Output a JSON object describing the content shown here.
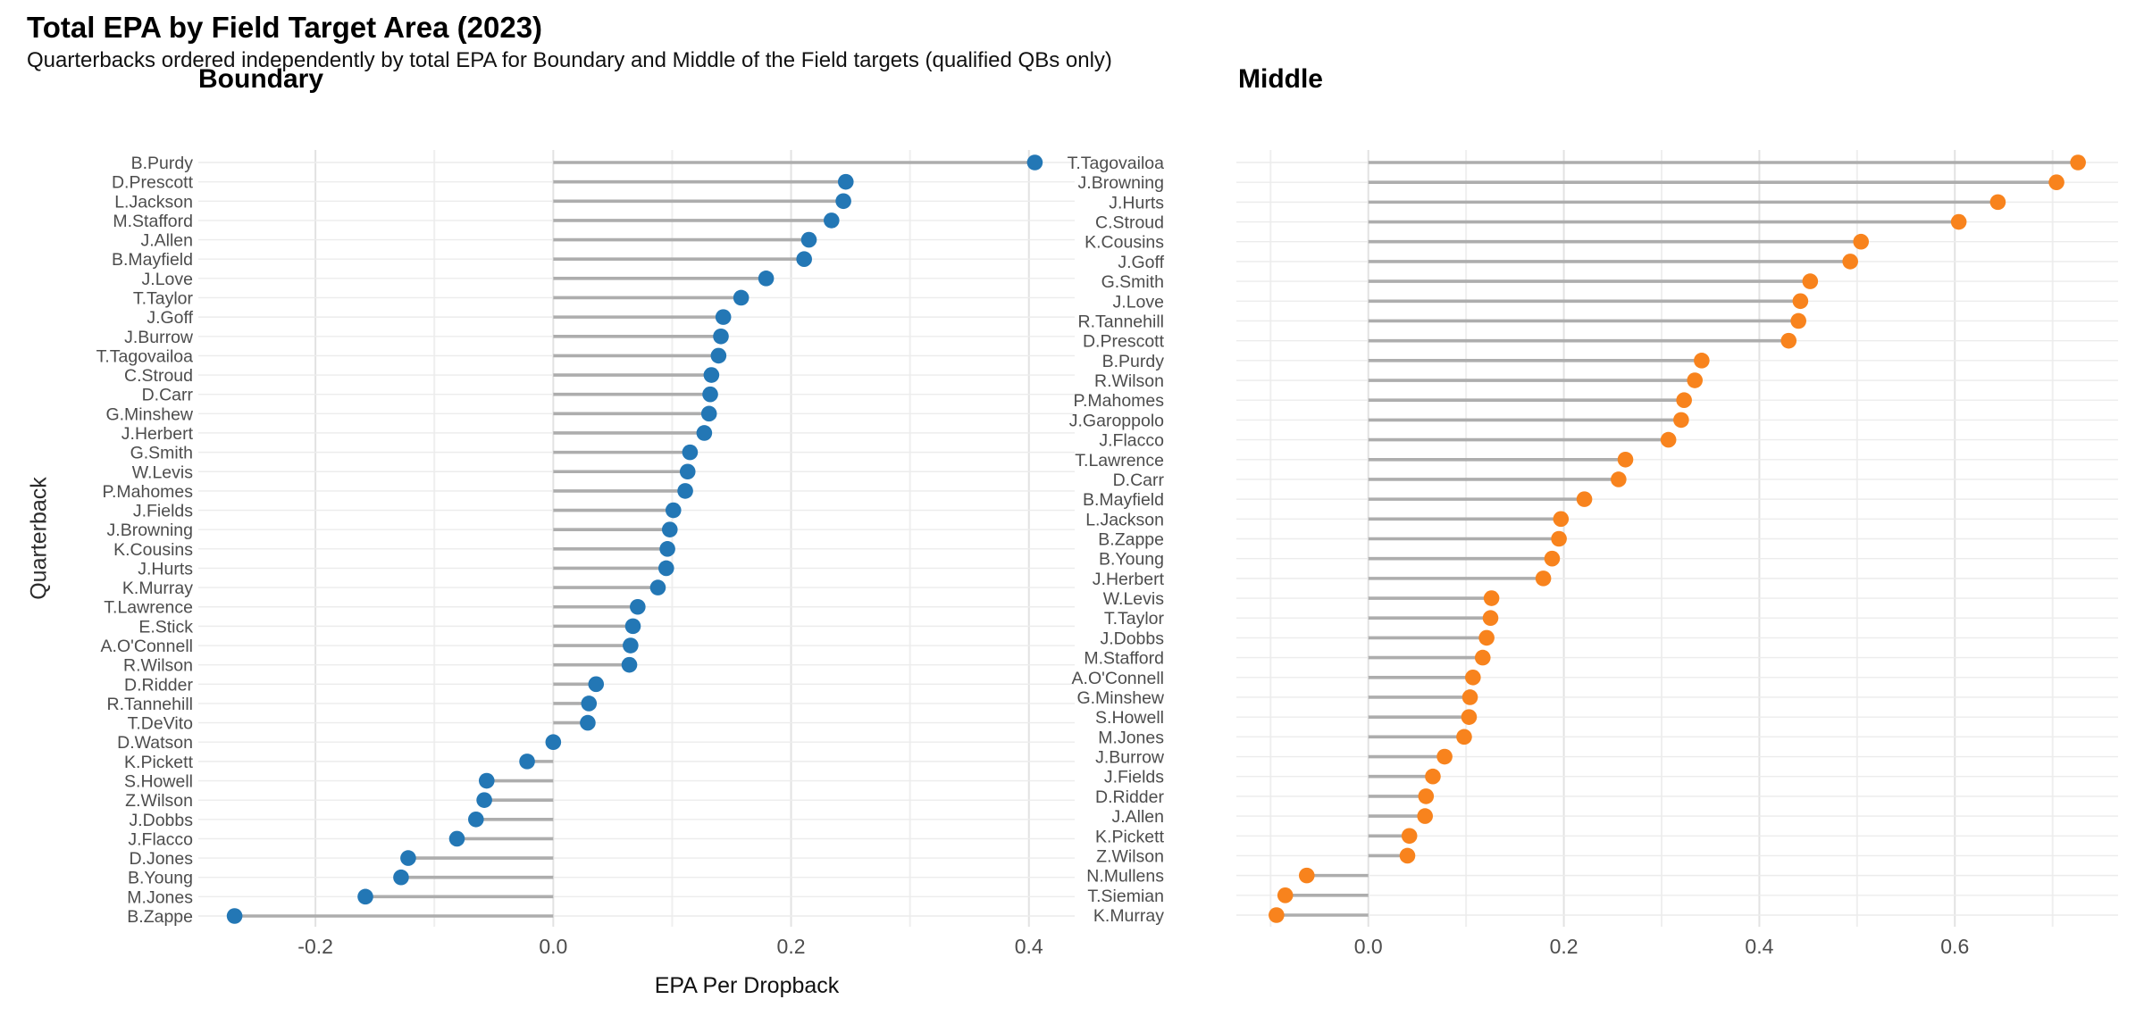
{
  "header": {
    "title": "Total EPA by Field Target Area (2023)",
    "subtitle": "Quarterbacks ordered independently by total EPA for Boundary and Middle of the Field targets (qualified QBs only)"
  },
  "chart_data": {
    "type": "scatter",
    "variant": "lollipop-dot-plot",
    "grid": "on",
    "stem_color": "#ADADAD",
    "grid_major_color": "#E2E2E2",
    "grid_minor_color": "#EFEFEF",
    "grid_row_color": "#ECECEC",
    "axis_text_color": "#4D4D4D",
    "panels": [
      {
        "title": "Boundary",
        "color": "#2377B5",
        "xlabel": "EPA Per Dropback",
        "ylabel": "Quarterback",
        "x_ticks": [
          -0.2,
          0.0,
          0.2,
          0.4
        ],
        "x_minor_ticks": [
          -0.1,
          0.1,
          0.3
        ],
        "xlim": [
          -0.2985,
          0.4385
        ],
        "points": [
          {
            "label": "B.Purdy",
            "value": 0.405
          },
          {
            "label": "D.Prescott",
            "value": 0.246
          },
          {
            "label": "L.Jackson",
            "value": 0.244
          },
          {
            "label": "M.Stafford",
            "value": 0.234
          },
          {
            "label": "J.Allen",
            "value": 0.215
          },
          {
            "label": "B.Mayfield",
            "value": 0.211
          },
          {
            "label": "J.Love",
            "value": 0.179
          },
          {
            "label": "T.Taylor",
            "value": 0.158
          },
          {
            "label": "J.Goff",
            "value": 0.143
          },
          {
            "label": "J.Burrow",
            "value": 0.141
          },
          {
            "label": "T.Tagovailoa",
            "value": 0.139
          },
          {
            "label": "C.Stroud",
            "value": 0.133
          },
          {
            "label": "D.Carr",
            "value": 0.132
          },
          {
            "label": "G.Minshew",
            "value": 0.131
          },
          {
            "label": "J.Herbert",
            "value": 0.127
          },
          {
            "label": "G.Smith",
            "value": 0.115
          },
          {
            "label": "W.Levis",
            "value": 0.113
          },
          {
            "label": "P.Mahomes",
            "value": 0.111
          },
          {
            "label": "J.Fields",
            "value": 0.101
          },
          {
            "label": "J.Browning",
            "value": 0.098
          },
          {
            "label": "K.Cousins",
            "value": 0.096
          },
          {
            "label": "J.Hurts",
            "value": 0.095
          },
          {
            "label": "K.Murray",
            "value": 0.088
          },
          {
            "label": "T.Lawrence",
            "value": 0.071
          },
          {
            "label": "E.Stick",
            "value": 0.067
          },
          {
            "label": "A.O'Connell",
            "value": 0.065
          },
          {
            "label": "R.Wilson",
            "value": 0.064
          },
          {
            "label": "D.Ridder",
            "value": 0.036
          },
          {
            "label": "R.Tannehill",
            "value": 0.03
          },
          {
            "label": "T.DeVito",
            "value": 0.029
          },
          {
            "label": "D.Watson",
            "value": 0.0
          },
          {
            "label": "K.Pickett",
            "value": -0.022
          },
          {
            "label": "S.Howell",
            "value": -0.056
          },
          {
            "label": "Z.Wilson",
            "value": -0.058
          },
          {
            "label": "J.Dobbs",
            "value": -0.065
          },
          {
            "label": "J.Flacco",
            "value": -0.081
          },
          {
            "label": "D.Jones",
            "value": -0.122
          },
          {
            "label": "B.Young",
            "value": -0.128
          },
          {
            "label": "M.Jones",
            "value": -0.158
          },
          {
            "label": "B.Zappe",
            "value": -0.268
          }
        ]
      },
      {
        "title": "Middle",
        "color": "#F8831D",
        "x_ticks": [
          0.0,
          0.2,
          0.4,
          0.6
        ],
        "x_minor_ticks": [
          -0.1,
          0.1,
          0.3,
          0.5,
          0.7
        ],
        "xlim": [
          -0.135,
          0.767
        ],
        "points": [
          {
            "label": "T.Tagovailoa",
            "value": 0.726
          },
          {
            "label": "J.Browning",
            "value": 0.704
          },
          {
            "label": "J.Hurts",
            "value": 0.644
          },
          {
            "label": "C.Stroud",
            "value": 0.604
          },
          {
            "label": "K.Cousins",
            "value": 0.504
          },
          {
            "label": "J.Goff",
            "value": 0.493
          },
          {
            "label": "G.Smith",
            "value": 0.452
          },
          {
            "label": "J.Love",
            "value": 0.442
          },
          {
            "label": "R.Tannehill",
            "value": 0.44
          },
          {
            "label": "D.Prescott",
            "value": 0.43
          },
          {
            "label": "B.Purdy",
            "value": 0.341
          },
          {
            "label": "R.Wilson",
            "value": 0.334
          },
          {
            "label": "P.Mahomes",
            "value": 0.323
          },
          {
            "label": "J.Garoppolo",
            "value": 0.32
          },
          {
            "label": "J.Flacco",
            "value": 0.307
          },
          {
            "label": "T.Lawrence",
            "value": 0.263
          },
          {
            "label": "D.Carr",
            "value": 0.256
          },
          {
            "label": "B.Mayfield",
            "value": 0.221
          },
          {
            "label": "L.Jackson",
            "value": 0.197
          },
          {
            "label": "B.Zappe",
            "value": 0.195
          },
          {
            "label": "B.Young",
            "value": 0.188
          },
          {
            "label": "J.Herbert",
            "value": 0.179
          },
          {
            "label": "W.Levis",
            "value": 0.126
          },
          {
            "label": "T.Taylor",
            "value": 0.125
          },
          {
            "label": "J.Dobbs",
            "value": 0.121
          },
          {
            "label": "M.Stafford",
            "value": 0.117
          },
          {
            "label": "A.O'Connell",
            "value": 0.107
          },
          {
            "label": "G.Minshew",
            "value": 0.104
          },
          {
            "label": "S.Howell",
            "value": 0.103
          },
          {
            "label": "M.Jones",
            "value": 0.098
          },
          {
            "label": "J.Burrow",
            "value": 0.078
          },
          {
            "label": "J.Fields",
            "value": 0.066
          },
          {
            "label": "D.Ridder",
            "value": 0.059
          },
          {
            "label": "J.Allen",
            "value": 0.058
          },
          {
            "label": "K.Pickett",
            "value": 0.042
          },
          {
            "label": "Z.Wilson",
            "value": 0.04
          },
          {
            "label": "N.Mullens",
            "value": -0.063
          },
          {
            "label": "T.Siemian",
            "value": -0.085
          },
          {
            "label": "K.Murray",
            "value": -0.094
          }
        ]
      }
    ]
  }
}
